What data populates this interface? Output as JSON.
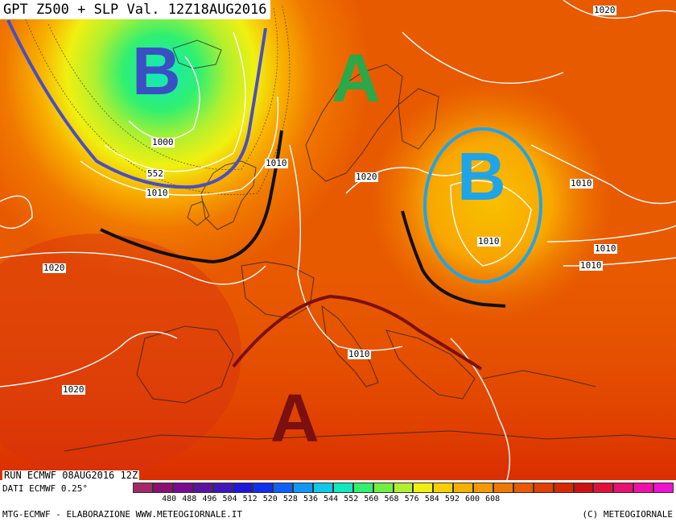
{
  "title": "GPT Z500 + SLP Val. 12Z18AUG2016",
  "footer": {
    "run": "RUN ECMWF 08AUG2016 12Z",
    "dati": "DATI ECMWF 0.25°",
    "credit_left": "MTG-ECMWF - ELABORAZIONE WWW.METEOGIORNALE.IT",
    "credit_right": "(C) METEOGIORNALE"
  },
  "pressure_labels": [
    "1020",
    "1000",
    "552",
    "1010",
    "1010",
    "1020",
    "1010",
    "1010",
    "1010",
    "1020",
    "1010",
    "1020",
    "1010"
  ],
  "centers": [
    {
      "letter": "B",
      "meaning": "low",
      "color": "#3b4fc4"
    },
    {
      "letter": "A",
      "meaning": "high",
      "color": "#2aa84a"
    },
    {
      "letter": "B",
      "meaning": "low",
      "color": "#1fa4e8"
    },
    {
      "letter": "A",
      "meaning": "high",
      "color": "#7a1010"
    }
  ],
  "colorbar": {
    "labels": [
      "480",
      "488",
      "496",
      "504",
      "512",
      "520",
      "528",
      "536",
      "544",
      "552",
      "560",
      "568",
      "576",
      "584",
      "592",
      "600",
      "608"
    ],
    "colors": [
      "#a02a6a",
      "#8a1070",
      "#7a0a90",
      "#5a14a0",
      "#4016b8",
      "#2016d8",
      "#1030f0",
      "#1060f8",
      "#1098f8",
      "#10c8e8",
      "#10e8c0",
      "#30f070",
      "#70f040",
      "#b0f030",
      "#f0f010",
      "#f8d000",
      "#f8b000",
      "#f89800",
      "#f07800",
      "#e85a00",
      "#e04000",
      "#d82800",
      "#d01010",
      "#e0103a",
      "#e81070",
      "#f010a8",
      "#f010d0"
    ]
  }
}
